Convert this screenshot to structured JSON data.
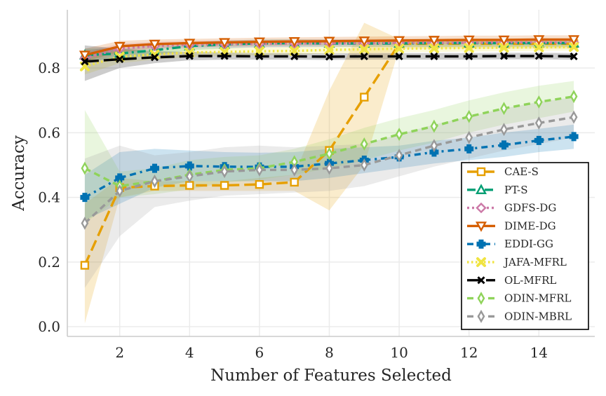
{
  "chart_data": {
    "type": "line",
    "title": "",
    "xlabel": "Number of Features Selected",
    "ylabel": "Accuracy",
    "xlim": [
      0.5,
      15.6
    ],
    "ylim": [
      -0.03,
      0.98
    ],
    "x": [
      1,
      2,
      3,
      4,
      5,
      6,
      7,
      8,
      9,
      10,
      11,
      12,
      13,
      14,
      15
    ],
    "x_ticks": [
      2,
      4,
      6,
      8,
      10,
      12,
      14
    ],
    "x_tick_labels": [
      "2",
      "4",
      "6",
      "8",
      "10",
      "12",
      "14"
    ],
    "y_ticks": [
      0.0,
      0.2,
      0.4,
      0.6,
      0.8
    ],
    "y_tick_labels": [
      "0.0",
      "0.2",
      "0.4",
      "0.6",
      "0.8"
    ],
    "grid": true,
    "legend_position": "bottom-right",
    "series": [
      {
        "name": "CAE-S",
        "color": "#e69f00",
        "dash": "long-dash",
        "marker": "square",
        "values": [
          0.19,
          0.43,
          0.435,
          0.437,
          0.437,
          0.44,
          0.447,
          0.545,
          0.71,
          0.875,
          0.875,
          0.875,
          0.875,
          0.875,
          0.875
        ],
        "lower": [
          0.01,
          0.4,
          0.42,
          0.42,
          0.42,
          0.42,
          0.42,
          0.36,
          0.5,
          0.86,
          0.86,
          0.86,
          0.86,
          0.86,
          0.86
        ],
        "upper": [
          0.38,
          0.46,
          0.45,
          0.45,
          0.45,
          0.46,
          0.47,
          0.73,
          0.94,
          0.89,
          0.89,
          0.89,
          0.89,
          0.89,
          0.89
        ]
      },
      {
        "name": "PT-S",
        "color": "#009e73",
        "dash": "dash-dot",
        "marker": "triangle-up",
        "values": [
          0.84,
          0.845,
          0.855,
          0.868,
          0.873,
          0.876,
          0.877,
          0.876,
          0.876,
          0.876,
          0.877,
          0.877,
          0.877,
          0.877,
          0.877
        ],
        "lower": [
          0.82,
          0.83,
          0.84,
          0.855,
          0.86,
          0.865,
          0.865,
          0.865,
          0.865,
          0.865,
          0.865,
          0.865,
          0.865,
          0.865,
          0.865
        ],
        "upper": [
          0.86,
          0.86,
          0.87,
          0.88,
          0.885,
          0.888,
          0.889,
          0.888,
          0.888,
          0.888,
          0.889,
          0.889,
          0.889,
          0.889,
          0.889
        ]
      },
      {
        "name": "GDFS-DG",
        "color": "#cc79a7",
        "dash": "dotted",
        "marker": "diamond",
        "values": [
          0.83,
          0.86,
          0.868,
          0.872,
          0.874,
          0.875,
          0.876,
          0.877,
          0.877,
          0.878,
          0.878,
          0.878,
          0.879,
          0.879,
          0.879
        ],
        "lower": [
          0.81,
          0.845,
          0.855,
          0.86,
          0.862,
          0.863,
          0.864,
          0.865,
          0.865,
          0.866,
          0.866,
          0.866,
          0.867,
          0.867,
          0.867
        ],
        "upper": [
          0.85,
          0.875,
          0.881,
          0.884,
          0.886,
          0.887,
          0.888,
          0.889,
          0.889,
          0.89,
          0.89,
          0.89,
          0.891,
          0.891,
          0.891
        ]
      },
      {
        "name": "DIME-DG",
        "color": "#d55e00",
        "dash": "solid",
        "marker": "triangle-down",
        "values": [
          0.84,
          0.867,
          0.874,
          0.877,
          0.879,
          0.881,
          0.882,
          0.883,
          0.884,
          0.885,
          0.886,
          0.887,
          0.887,
          0.888,
          0.888
        ],
        "lower": [
          0.82,
          0.85,
          0.86,
          0.864,
          0.866,
          0.868,
          0.869,
          0.87,
          0.871,
          0.872,
          0.873,
          0.874,
          0.874,
          0.875,
          0.875
        ],
        "upper": [
          0.86,
          0.884,
          0.888,
          0.89,
          0.892,
          0.894,
          0.895,
          0.896,
          0.897,
          0.898,
          0.899,
          0.9,
          0.9,
          0.901,
          0.901
        ]
      },
      {
        "name": "EDDI-GG",
        "color": "#0072b2",
        "dash": "dash-dot-wide",
        "marker": "plus",
        "values": [
          0.4,
          0.46,
          0.49,
          0.497,
          0.495,
          0.494,
          0.495,
          0.505,
          0.515,
          0.525,
          0.54,
          0.55,
          0.562,
          0.576,
          0.588
        ],
        "lower": [
          0.33,
          0.38,
          0.43,
          0.45,
          0.45,
          0.45,
          0.45,
          0.46,
          0.475,
          0.49,
          0.505,
          0.515,
          0.525,
          0.54,
          0.55
        ],
        "upper": [
          0.47,
          0.54,
          0.55,
          0.545,
          0.54,
          0.538,
          0.54,
          0.55,
          0.555,
          0.56,
          0.575,
          0.585,
          0.6,
          0.612,
          0.625
        ]
      },
      {
        "name": "JAFA-MFRL",
        "color": "#f0e442",
        "dash": "dotted-fine",
        "marker": "x-thick",
        "values": [
          0.805,
          0.835,
          0.842,
          0.848,
          0.85,
          0.852,
          0.853,
          0.856,
          0.858,
          0.86,
          0.861,
          0.862,
          0.863,
          0.864,
          0.865
        ],
        "lower": [
          0.78,
          0.815,
          0.826,
          0.834,
          0.837,
          0.84,
          0.841,
          0.845,
          0.847,
          0.849,
          0.85,
          0.851,
          0.852,
          0.853,
          0.854
        ],
        "upper": [
          0.83,
          0.855,
          0.858,
          0.862,
          0.863,
          0.864,
          0.865,
          0.867,
          0.869,
          0.871,
          0.872,
          0.873,
          0.874,
          0.875,
          0.876
        ]
      },
      {
        "name": "OL-MFRL",
        "color": "#000000",
        "dash": "long-dash-bold",
        "marker": "x",
        "values": [
          0.82,
          0.827,
          0.833,
          0.837,
          0.837,
          0.836,
          0.836,
          0.835,
          0.836,
          0.836,
          0.836,
          0.836,
          0.837,
          0.837,
          0.836
        ],
        "lower": [
          0.76,
          0.8,
          0.815,
          0.824,
          0.826,
          0.826,
          0.826,
          0.825,
          0.826,
          0.826,
          0.826,
          0.826,
          0.827,
          0.827,
          0.826
        ],
        "upper": [
          0.87,
          0.86,
          0.852,
          0.85,
          0.848,
          0.846,
          0.846,
          0.845,
          0.846,
          0.846,
          0.846,
          0.846,
          0.847,
          0.847,
          0.846
        ]
      },
      {
        "name": "ODIN-MFRL",
        "color": "#8fd35a",
        "dash": "dash",
        "marker": "thin-diamond",
        "values": [
          0.49,
          0.435,
          0.45,
          0.47,
          0.485,
          0.49,
          0.51,
          0.535,
          0.565,
          0.595,
          0.62,
          0.65,
          0.675,
          0.695,
          0.712
        ],
        "lower": [
          0.32,
          0.4,
          0.41,
          0.425,
          0.445,
          0.455,
          0.47,
          0.49,
          0.515,
          0.545,
          0.57,
          0.6,
          0.625,
          0.645,
          0.665
        ],
        "upper": [
          0.67,
          0.48,
          0.49,
          0.515,
          0.525,
          0.53,
          0.55,
          0.58,
          0.615,
          0.645,
          0.67,
          0.7,
          0.725,
          0.745,
          0.76
        ]
      },
      {
        "name": "ODIN-MBRL",
        "color": "#999999",
        "dash": "dash",
        "marker": "thin-diamond",
        "values": [
          0.32,
          0.42,
          0.45,
          0.465,
          0.48,
          0.485,
          0.485,
          0.49,
          0.5,
          0.53,
          0.56,
          0.585,
          0.61,
          0.63,
          0.648
        ],
        "lower": [
          0.12,
          0.28,
          0.37,
          0.39,
          0.405,
          0.41,
          0.415,
          0.42,
          0.435,
          0.465,
          0.495,
          0.52,
          0.545,
          0.565,
          0.585
        ],
        "upper": [
          0.52,
          0.56,
          0.53,
          0.54,
          0.555,
          0.56,
          0.555,
          0.56,
          0.565,
          0.595,
          0.625,
          0.65,
          0.675,
          0.695,
          0.71
        ]
      }
    ]
  }
}
